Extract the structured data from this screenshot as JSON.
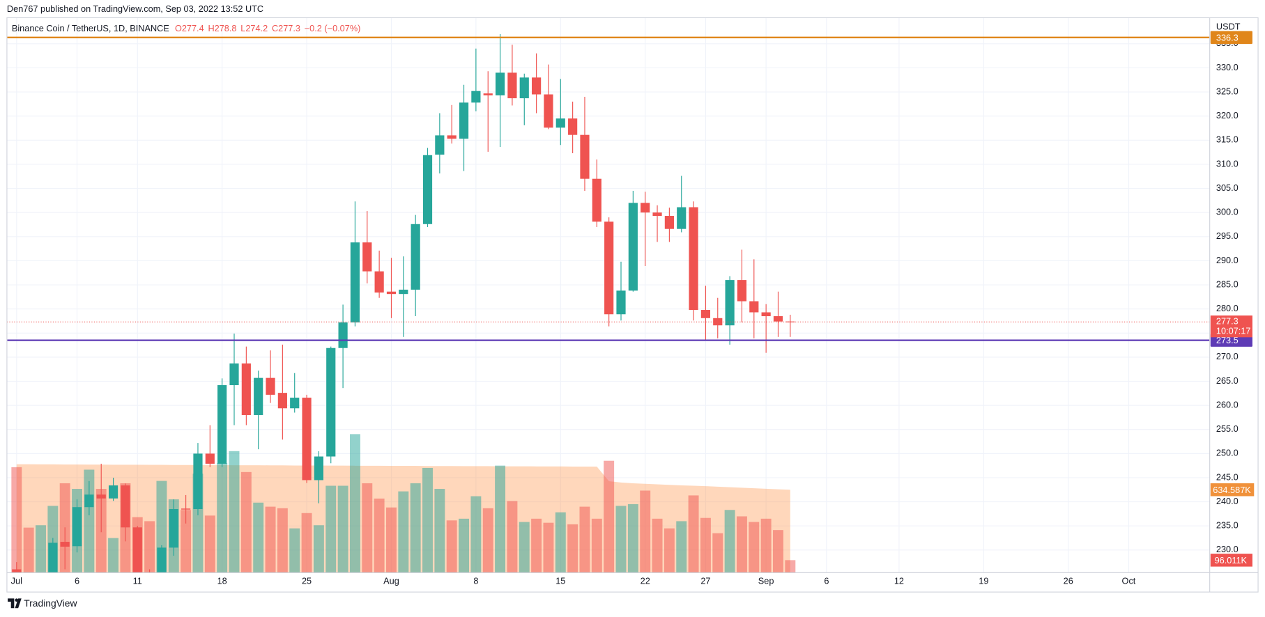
{
  "chart_data": {
    "type": "candlestick",
    "attribution": "Den767 published on TradingView.com, Sep 03, 2022 13:52 UTC",
    "symbol": "Binance Coin / TetherUS, 1D, BINANCE",
    "legend_values": [
      "O277.4",
      "H278.8",
      "L274.2",
      "C277.3",
      "−0.2 (−0.07%)"
    ],
    "currency": "USDT",
    "brand": "TradingView",
    "up_color": "#26a69a",
    "down_color": "#ef5350",
    "x": [
      0,
      1,
      2,
      3,
      4,
      5,
      6,
      7,
      8,
      9,
      10,
      11,
      12,
      13,
      14,
      15,
      16,
      17,
      18,
      19,
      20,
      21,
      22,
      23,
      24,
      25,
      26,
      27,
      28,
      29,
      30,
      31,
      32,
      33,
      34,
      35,
      36,
      37,
      38,
      39,
      40,
      41,
      42,
      43,
      44,
      45,
      46,
      47,
      48,
      49,
      50,
      51,
      52,
      53,
      54,
      55,
      56,
      57,
      58,
      59,
      60,
      61,
      62,
      63,
      64
    ],
    "open": [
      226,
      221,
      220,
      223,
      231.7,
      230.8,
      238.9,
      241.5,
      240.7,
      243.4,
      234.7,
      224.5,
      222,
      230.5,
      238.6,
      238.5,
      250,
      247.9,
      264.2,
      268.7,
      258,
      265.7,
      262.6,
      259.4,
      261.6,
      244.5,
      249.4,
      271.9,
      277.2,
      293.8,
      287.8,
      283.6,
      283.1,
      284,
      297.6,
      312,
      316,
      315.3,
      322.8,
      324.7,
      324.3,
      329,
      323.7,
      328,
      324.5,
      317.6,
      319.5,
      316.1,
      307,
      298.1,
      278.9,
      283.8,
      302,
      300,
      299.3,
      296.6,
      301.1,
      279.8,
      278.1,
      276.6,
      286,
      281.6,
      279.3,
      278.5,
      277.4
    ],
    "high": [
      227.5,
      223,
      225,
      232.5,
      234.7,
      240.5,
      244.3,
      247.9,
      245,
      243.8,
      235,
      226,
      231,
      240.5,
      241.4,
      252.2,
      255.9,
      265.6,
      274.9,
      272.2,
      267.2,
      271.4,
      272.6,
      266.7,
      262.2,
      250.5,
      272.2,
      280.9,
      302.3,
      300.3,
      292.1,
      290.6,
      290.9,
      299.5,
      313.4,
      320.6,
      322.3,
      326.5,
      334,
      329.3,
      337,
      334.8,
      328.8,
      333,
      330.7,
      327.7,
      323,
      324,
      311,
      299,
      289.8,
      304.5,
      304.3,
      301.5,
      301,
      307.6,
      302.3,
      284.8,
      282.3,
      286.8,
      292.3,
      290.3,
      281,
      283.6,
      278.8
    ],
    "low": [
      220,
      218,
      218,
      222,
      226,
      229.5,
      237.2,
      233.7,
      240.2,
      231.8,
      223,
      220,
      220,
      228.8,
      235.5,
      237.2,
      247.2,
      247.2,
      255.9,
      255.9,
      250.9,
      260.5,
      252.9,
      258.5,
      243.9,
      239.7,
      248,
      263.6,
      276.4,
      285.3,
      282.3,
      278.1,
      274.2,
      278.5,
      297,
      308.1,
      314.3,
      308.6,
      321,
      312.6,
      313.6,
      322.2,
      318.1,
      320.6,
      317.3,
      314,
      312.3,
      304.5,
      297,
      276.4,
      277.6,
      283.6,
      288.9,
      293.9,
      293.9,
      295.9,
      277.6,
      273.6,
      273.9,
      272.6,
      277.2,
      273.9,
      270.9,
      274.2,
      274.2
    ],
    "close": [
      221,
      220,
      224,
      231.5,
      230.7,
      238.9,
      241.5,
      240.7,
      243.4,
      234.7,
      224.5,
      221,
      230.5,
      238.5,
      238.4,
      250,
      247.9,
      264.2,
      268.7,
      258,
      265.7,
      262.2,
      259.4,
      261.6,
      244.5,
      249.4,
      271.9,
      277.2,
      293.8,
      287.8,
      283.4,
      283.1,
      284,
      297.6,
      311.9,
      316,
      315.3,
      322.8,
      325.2,
      324.3,
      329,
      323.7,
      328,
      324.5,
      317.6,
      319.5,
      316.1,
      307,
      298.1,
      278.9,
      283.8,
      302,
      300,
      299.3,
      296.6,
      301.1,
      279.8,
      278.1,
      276.6,
      286,
      281.6,
      279.3,
      278.5,
      277.4,
      277.3
    ],
    "volume": [
      807,
      345,
      363,
      511,
      684,
      641,
      788,
      641,
      265,
      684,
      425,
      394,
      702,
      561,
      480,
      758,
      437,
      838,
      930,
      770,
      536,
      505,
      493,
      339,
      456,
      363,
      665,
      665,
      1060,
      684,
      567,
      499,
      622,
      684,
      801,
      641,
      400,
      413,
      585,
      493,
      819,
      548,
      388,
      413,
      382,
      462,
      370,
      505,
      413,
      856,
      511,
      524,
      628,
      413,
      339,
      394,
      591,
      419,
      302,
      480,
      431,
      388,
      413,
      326,
      96.011
    ],
    "volume_ma": [
      830,
      830,
      829,
      829,
      828,
      828,
      827,
      827,
      826,
      826,
      826,
      825,
      825,
      824,
      824,
      824,
      823,
      823,
      822,
      822,
      822,
      821,
      821,
      820,
      820,
      820,
      819,
      819,
      818,
      818,
      818,
      817,
      817,
      817,
      816,
      816,
      816,
      815,
      815,
      815,
      814,
      814,
      814,
      813,
      813,
      813,
      812,
      812,
      812,
      700,
      690,
      684,
      680,
      676,
      672,
      668,
      665,
      662,
      658,
      654,
      650,
      646,
      642,
      638,
      634.587
    ],
    "volume_lim": [
      0,
      4245
    ],
    "volume_ma_label": {
      "value": 634.587,
      "label": "634.587K"
    },
    "last_volume_label": {
      "value": 96.011,
      "label": "96.011K"
    },
    "ylim": [
      225.3,
      340.4
    ],
    "yticks": [
      {
        "value": 230,
        "label": "230.0"
      },
      {
        "value": 235,
        "label": "235.0"
      },
      {
        "value": 240,
        "label": "240.0"
      },
      {
        "value": 245,
        "label": "245.0"
      },
      {
        "value": 250,
        "label": "250.0"
      },
      {
        "value": 255,
        "label": "255.0"
      },
      {
        "value": 260,
        "label": "260.0"
      },
      {
        "value": 265,
        "label": "265.0"
      },
      {
        "value": 270,
        "label": "270.0"
      },
      {
        "value": 275,
        "label": "275.0"
      },
      {
        "value": 280,
        "label": "280.0"
      },
      {
        "value": 285,
        "label": "285.0"
      },
      {
        "value": 290,
        "label": "290.0"
      },
      {
        "value": 295,
        "label": "295.0"
      },
      {
        "value": 300,
        "label": "300.0"
      },
      {
        "value": 305,
        "label": "305.0"
      },
      {
        "value": 310,
        "label": "310.0"
      },
      {
        "value": 315,
        "label": "315.0"
      },
      {
        "value": 320,
        "label": "320.0"
      },
      {
        "value": 325,
        "label": "325.0"
      },
      {
        "value": 330,
        "label": "330.0"
      },
      {
        "value": 335,
        "label": "335.0"
      }
    ],
    "xlim": [
      -0.8,
      98.7
    ],
    "xticks": [
      {
        "value": 0,
        "label": "Jul"
      },
      {
        "value": 5,
        "label": "6"
      },
      {
        "value": 10,
        "label": "11"
      },
      {
        "value": 17,
        "label": "18"
      },
      {
        "value": 24,
        "label": "25"
      },
      {
        "value": 31,
        "label": "Aug"
      },
      {
        "value": 38,
        "label": "8"
      },
      {
        "value": 45,
        "label": "15"
      },
      {
        "value": 52,
        "label": "22"
      },
      {
        "value": 57,
        "label": "27"
      },
      {
        "value": 62,
        "label": "Sep"
      },
      {
        "value": 67,
        "label": "6"
      },
      {
        "value": 73,
        "label": "12"
      },
      {
        "value": 80,
        "label": "19"
      },
      {
        "value": 87,
        "label": "26"
      },
      {
        "value": 92,
        "label": "Oct"
      }
    ],
    "levels": [
      {
        "value": 336.3,
        "label": "336.3",
        "color": "#e0861a"
      },
      {
        "value": 273.5,
        "label": "273.5",
        "color": "#5e3bb5"
      }
    ],
    "last_price": {
      "value": 277.3,
      "label": "277.3",
      "countdown": "10:07:17"
    },
    "grid": true
  }
}
